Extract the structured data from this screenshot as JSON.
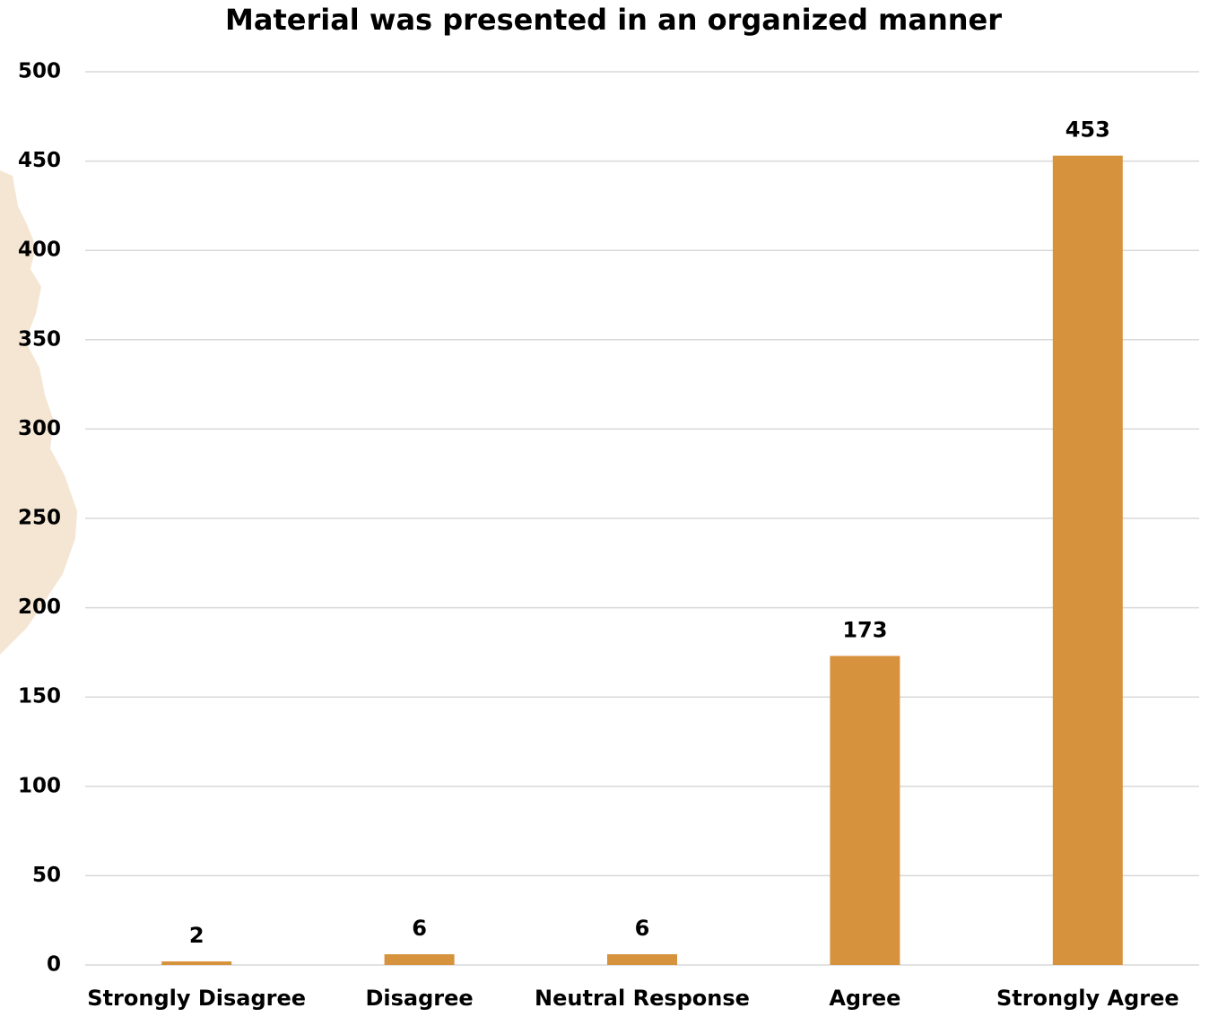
{
  "chart_data": {
    "type": "bar",
    "title": "Material was presented in an organized manner",
    "categories": [
      "Strongly Disagree",
      "Disagree",
      "Neutral Response",
      "Agree",
      "Strongly Agree"
    ],
    "values": [
      2,
      6,
      6,
      173,
      453
    ],
    "color": "#d6923c",
    "ylim": [
      0,
      500
    ],
    "yticks": [
      0,
      50,
      100,
      150,
      200,
      250,
      300,
      350,
      400,
      450,
      500
    ],
    "grid": true
  }
}
